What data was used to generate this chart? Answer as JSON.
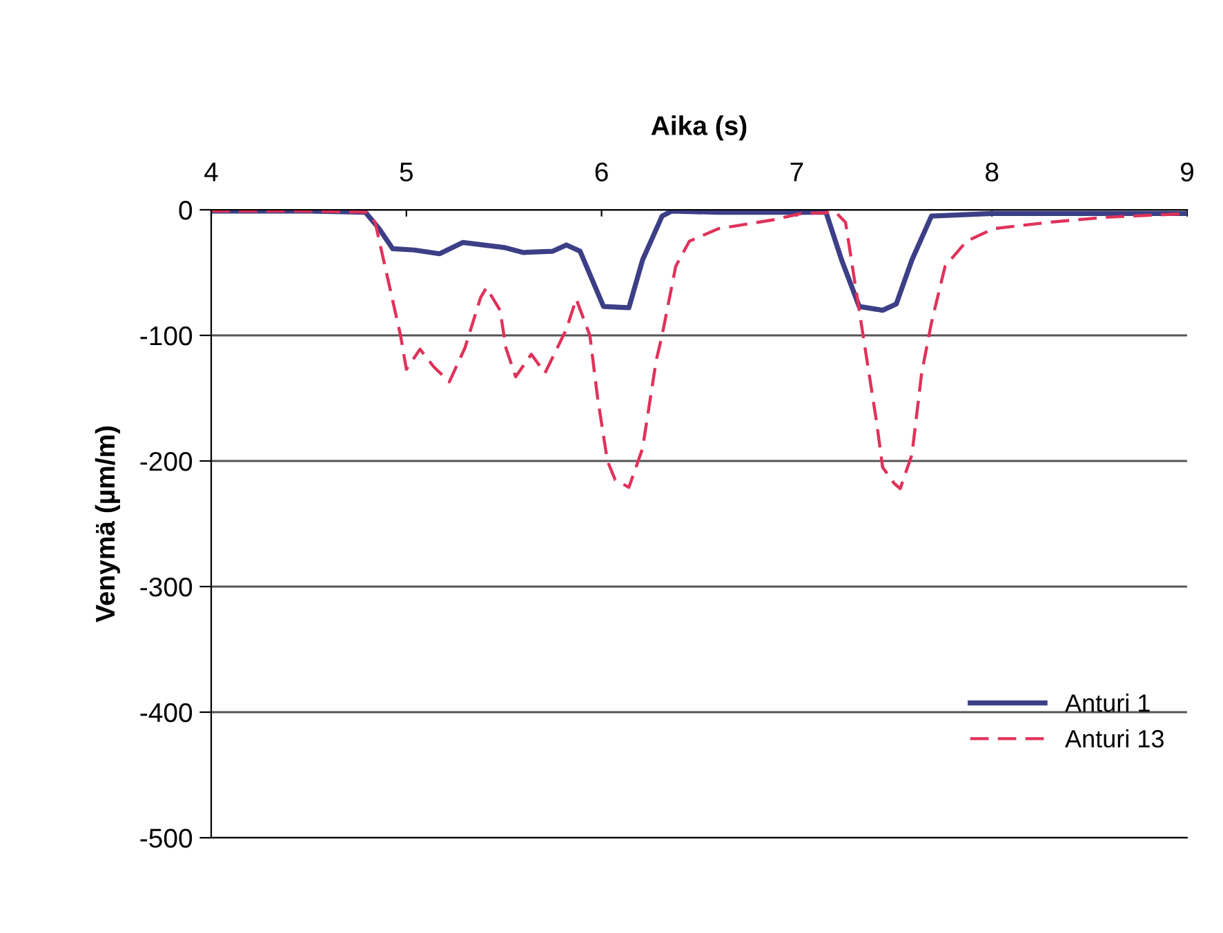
{
  "chart_data": {
    "type": "line",
    "xlabel": "Aika (s)",
    "ylabel": "Venymä (µm/m)",
    "xlim": [
      4,
      9
    ],
    "xticks": [
      4,
      5,
      6,
      7,
      8,
      9
    ],
    "ylim": [
      -500,
      0
    ],
    "yticks": [
      -500,
      -400,
      -300,
      -200,
      -100,
      0
    ],
    "grid": "y",
    "legend": "bottom right",
    "series": [
      {
        "name": "Anturi 1",
        "color": "#3c3f86",
        "line_style": "solid",
        "x": [
          4,
          4.5,
          4.79,
          4.86,
          4.93,
          5.04,
          5.17,
          5.29,
          5.5,
          5.6,
          5.75,
          5.82,
          5.89,
          5.95,
          6.01,
          6.14,
          6.21,
          6.31,
          6.36,
          6.6,
          7.0,
          7.15,
          7.23,
          7.32,
          7.44,
          7.51,
          7.59,
          7.69,
          8.0,
          8.5,
          9.0
        ],
        "values": [
          -1,
          -1,
          -2,
          -15,
          -31,
          -32,
          -35,
          -26,
          -30,
          -34,
          -33,
          -28,
          -33,
          -55,
          -77,
          -78,
          -40,
          -5,
          -1,
          -2,
          -2,
          -2,
          -40,
          -77,
          -80,
          -75,
          -40,
          -5,
          -3,
          -3,
          -3
        ]
      },
      {
        "name": "Anturi 13",
        "color": "#e0325a",
        "line_style": "dashed",
        "x": [
          4,
          4.5,
          4.8,
          4.84,
          4.97,
          5.0,
          5.07,
          5.14,
          5.22,
          5.3,
          5.38,
          5.41,
          5.48,
          5.51,
          5.56,
          5.64,
          5.71,
          5.82,
          5.87,
          5.94,
          5.98,
          6.03,
          6.07,
          6.14,
          6.21,
          6.28,
          6.31,
          6.38,
          6.45,
          6.6,
          6.88,
          7.02,
          7.2,
          7.25,
          7.3,
          7.34,
          7.41,
          7.44,
          7.5,
          7.53,
          7.59,
          7.64,
          7.69,
          7.76,
          7.87,
          8.01,
          8.29,
          8.58,
          9.0
        ],
        "values": [
          -1,
          -1,
          -2,
          -10,
          -100,
          -127,
          -111,
          -125,
          -137,
          -110,
          -70,
          -62,
          -80,
          -110,
          -133,
          -115,
          -130,
          -95,
          -71,
          -100,
          -150,
          -200,
          -215,
          -221,
          -190,
          -120,
          -100,
          -45,
          -25,
          -15,
          -8,
          -3,
          -2,
          -10,
          -60,
          -100,
          -170,
          -205,
          -218,
          -222,
          -195,
          -130,
          -90,
          -45,
          -25,
          -15,
          -10,
          -6,
          -3
        ]
      }
    ]
  }
}
